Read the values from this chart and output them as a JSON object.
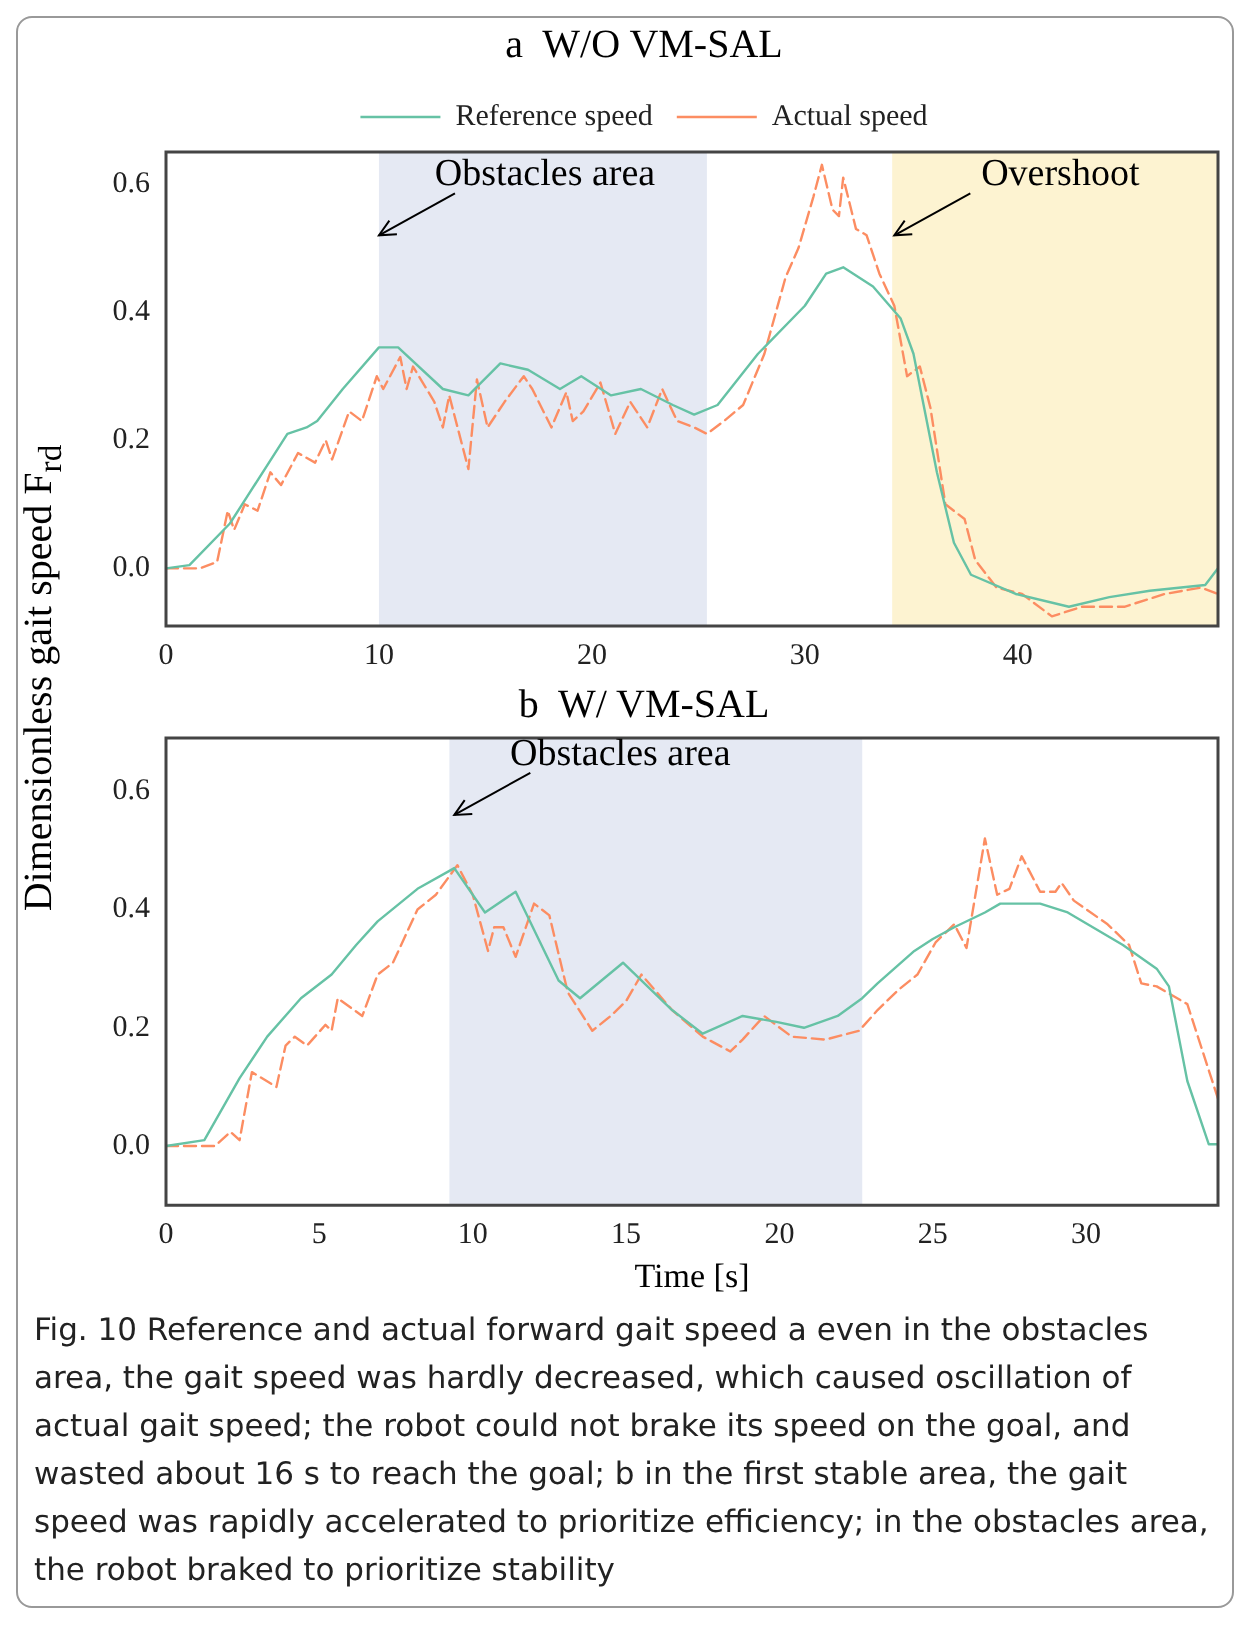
{
  "chart_data": [
    {
      "type": "line",
      "title": "a  W/O VM-SAL",
      "ylabel": "Dimensionless gait speed F$_{rd}$",
      "legend": "top",
      "marker": "none",
      "grid": false,
      "xlim": [
        0,
        49.4
      ],
      "xticks": [
        0,
        10,
        20,
        30,
        40
      ],
      "ylim": [
        -0.09,
        0.65
      ],
      "yticks": [
        {
          "value": 0,
          "label": "0.0"
        },
        {
          "value": 0.2,
          "label": "0.2"
        },
        {
          "value": 0.4,
          "label": "0.4"
        },
        {
          "value": 0.6,
          "label": "0.6"
        }
      ],
      "bands": [
        {
          "axis": "x",
          "from": 10,
          "to": 25.4,
          "color": "#e5e9f3"
        },
        {
          "axis": "x",
          "from": 34.1,
          "to": 49.4,
          "color": "#fdf3d1"
        }
      ],
      "annotations": [
        {
          "text": "Obstacles area",
          "x": 10,
          "y": 0.52
        },
        {
          "text": "Overshoot",
          "x": 34.2,
          "y": 0.52
        }
      ],
      "series": [
        {
          "name": "Reference speed",
          "color": "#66c2a5",
          "line_style": "solid",
          "x": [
            0,
            1.1,
            3.0,
            5.7,
            6.6,
            7.1,
            8.3,
            10,
            10.9,
            13.0,
            14.2,
            15.7,
            17.0,
            18.5,
            19.5,
            20.9,
            22.3,
            23.8,
            24.8,
            25.9,
            27.8,
            30,
            31,
            31.8,
            33.2,
            34.5,
            35.1,
            36.2,
            37,
            37.8,
            39.9,
            42.4,
            44.3,
            46.2,
            48.8,
            49.4
          ],
          "values": [
            0,
            0.005,
            0.07,
            0.21,
            0.22,
            0.23,
            0.28,
            0.345,
            0.345,
            0.28,
            0.27,
            0.32,
            0.31,
            0.28,
            0.3,
            0.27,
            0.28,
            0.255,
            0.24,
            0.255,
            0.335,
            0.41,
            0.46,
            0.47,
            0.44,
            0.39,
            0.335,
            0.15,
            0.04,
            -0.01,
            -0.04,
            -0.06,
            -0.045,
            -0.035,
            -0.026,
            0
          ]
        },
        {
          "name": "Actual speed",
          "color": "#fc8d62",
          "line_style": "dashed",
          "x": [
            0,
            1.6,
            2.4,
            2.9,
            3.2,
            3.7,
            4.3,
            4.9,
            5.4,
            6.2,
            7.0,
            7.5,
            7.8,
            8.6,
            9.2,
            9.9,
            10.2,
            11.0,
            11.3,
            11.6,
            12.6,
            13,
            13.3,
            14.2,
            14.6,
            15.1,
            15.9,
            16.8,
            17.2,
            18.1,
            18.8,
            19.1,
            19.6,
            20.4,
            21.1,
            21.8,
            22.6,
            23.3,
            24,
            24.8,
            25.4,
            26.2,
            27.1,
            28.1,
            29.1,
            29.7,
            30.4,
            30.8,
            31.3,
            31.6,
            31.8,
            32.4,
            32.9,
            33.5,
            34.2,
            34.8,
            35.4,
            35.9,
            36.6,
            37.5,
            38,
            39,
            40.2,
            41.6,
            43,
            45,
            46.9,
            48.6,
            49.4
          ],
          "values": [
            0,
            0,
            0.01,
            0.09,
            0.06,
            0.1,
            0.09,
            0.15,
            0.13,
            0.18,
            0.165,
            0.2,
            0.17,
            0.245,
            0.23,
            0.3,
            0.28,
            0.33,
            0.28,
            0.315,
            0.26,
            0.22,
            0.27,
            0.155,
            0.295,
            0.22,
            0.26,
            0.3,
            0.28,
            0.22,
            0.275,
            0.23,
            0.245,
            0.29,
            0.21,
            0.26,
            0.22,
            0.28,
            0.23,
            0.22,
            0.21,
            0.23,
            0.255,
            0.335,
            0.455,
            0.5,
            0.58,
            0.63,
            0.56,
            0.55,
            0.61,
            0.53,
            0.52,
            0.46,
            0.41,
            0.3,
            0.315,
            0.25,
            0.1,
            0.077,
            0.013,
            -0.03,
            -0.04,
            -0.075,
            -0.06,
            -0.06,
            -0.04,
            -0.03,
            -0.04
          ]
        }
      ]
    },
    {
      "type": "line",
      "title": "b  W/ VM-SAL",
      "xlabel": "Time [s]",
      "marker": "none",
      "grid": false,
      "xlim": [
        0,
        34.3
      ],
      "xticks": [
        0,
        5,
        10,
        15,
        20,
        25,
        30
      ],
      "ylim": [
        -0.1,
        0.69
      ],
      "yticks": [
        {
          "value": 0,
          "label": "0.0"
        },
        {
          "value": 0.2,
          "label": "0.2"
        },
        {
          "value": 0.4,
          "label": "0.4"
        },
        {
          "value": 0.6,
          "label": "0.6"
        }
      ],
      "bands": [
        {
          "axis": "x",
          "from": 9.24,
          "to": 22.7,
          "color": "#e5e9f3"
        }
      ],
      "annotations": [
        {
          "text": "Obstacles area",
          "x": 9.4,
          "y": 0.56
        },
        "Fig. 10  Reference and actual forward gait speed a even in the obstacles area, the gait speed was hardly decreased, which caused oscillation of actual gait speed; the robot could not brake its speed on the goal, and wasted about 16 s to reach the goal; b in the first stable area, the gait speed was rapidly accelerated to prioritize efficiency; in the obstacles area, the robot braked to prioritize stability"
      ],
      "series": [
        {
          "color": "#66c2a5",
          "line_style": "solid",
          "x": [
            0,
            1.25,
            2.4,
            3.3,
            4.4,
            5.4,
            6.2,
            6.9,
            8.2,
            9.4,
            10.4,
            11.4,
            12.8,
            13.5,
            14.9,
            16.5,
            17.5,
            18.8,
            19.9,
            20.8,
            21.9,
            22.7,
            23.2,
            24.4,
            25,
            25.7,
            26.7,
            27.2,
            28.5,
            29.4,
            31.2,
            32.3,
            32.7,
            33.3,
            34,
            34.3
          ],
          "values": [
            0,
            0.01,
            0.115,
            0.185,
            0.25,
            0.29,
            0.34,
            0.38,
            0.435,
            0.47,
            0.395,
            0.43,
            0.28,
            0.25,
            0.31,
            0.23,
            0.19,
            0.22,
            0.21,
            0.2,
            0.22,
            0.25,
            0.275,
            0.33,
            0.35,
            0.37,
            0.395,
            0.41,
            0.41,
            0.395,
            0.34,
            0.3,
            0.27,
            0.11,
            0.003,
            0.003
          ]
        },
        {
          "color": "#fc8d62",
          "line_style": "dashed",
          "x": [
            0,
            1.6,
            2.1,
            2.4,
            2.8,
            3.6,
            3.9,
            4.2,
            4.6,
            5.2,
            5.4,
            5.6,
            6.4,
            6.9,
            7.4,
            8.2,
            8.8,
            9.5,
            10,
            10.5,
            10.7,
            11,
            11.4,
            12,
            12.5,
            13.1,
            13.9,
            14.5,
            15,
            15.5,
            16.5,
            17.5,
            18.4,
            18.8,
            19.5,
            20.4,
            21.5,
            22.6,
            23.2,
            23.9,
            24.5,
            25.1,
            25.7,
            26.1,
            26.7,
            27.1,
            27.5,
            27.9,
            28.5,
            29,
            29.2,
            29.6,
            30.7,
            31.4,
            31.8,
            32.3,
            33.3,
            33.8,
            34.3
          ],
          "values": [
            0,
            0,
            0.024,
            0.01,
            0.125,
            0.1,
            0.17,
            0.185,
            0.17,
            0.205,
            0.195,
            0.25,
            0.22,
            0.29,
            0.31,
            0.4,
            0.425,
            0.475,
            0.425,
            0.33,
            0.37,
            0.37,
            0.32,
            0.41,
            0.39,
            0.26,
            0.195,
            0.22,
            0.245,
            0.29,
            0.23,
            0.185,
            0.16,
            0.18,
            0.22,
            0.185,
            0.18,
            0.195,
            0.23,
            0.265,
            0.29,
            0.345,
            0.375,
            0.335,
            0.52,
            0.425,
            0.435,
            0.49,
            0.43,
            0.43,
            0.445,
            0.415,
            0.375,
            0.34,
            0.275,
            0.27,
            0.24,
            0.16,
            0.08
          ]
        }
      ]
    }
  ]
}
